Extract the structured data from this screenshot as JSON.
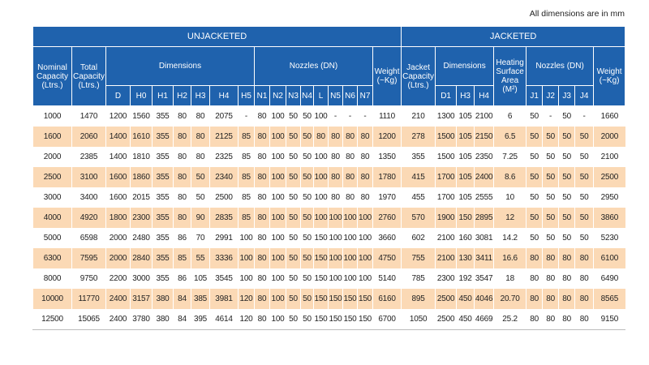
{
  "note": "All dimensions are in mm",
  "table": {
    "groups": [
      "UNJACKETED",
      "JACKETED"
    ],
    "headers": [
      "Nominal Capacity (Ltrs.)",
      "Total Capacity (Ltrs.)",
      "Dimensions",
      "Nozzles (DN)",
      "Weight (~Kg)",
      "Jacket Capacity (Ltrs.)",
      "Dimensions",
      "Heating Surface Area (M²)",
      "Nozzles (DN)",
      "Weight (~Kg)"
    ],
    "subheaders": [
      "D",
      "H0",
      "H1",
      "H2",
      "H3",
      "H4",
      "H5",
      "N1",
      "N2",
      "N3",
      "N4",
      "L",
      "N5",
      "N6",
      "N7",
      "D1",
      "H3",
      "H4",
      "J1",
      "J2",
      "J3",
      "J4"
    ],
    "rows": [
      [
        "1000",
        "1470",
        "1200",
        "1560",
        "355",
        "80",
        "80",
        "2075",
        "-",
        "80",
        "100",
        "50",
        "50",
        "100",
        "-",
        "-",
        "-",
        "1110",
        "210",
        "1300",
        "105",
        "2100",
        "6",
        "50",
        "-",
        "50",
        "-",
        "1660"
      ],
      [
        "1600",
        "2060",
        "1400",
        "1610",
        "355",
        "80",
        "80",
        "2125",
        "85",
        "80",
        "100",
        "50",
        "50",
        "80",
        "80",
        "80",
        "80",
        "1200",
        "278",
        "1500",
        "105",
        "2150",
        "6.5",
        "50",
        "50",
        "50",
        "50",
        "2000"
      ],
      [
        "2000",
        "2385",
        "1400",
        "1810",
        "355",
        "80",
        "80",
        "2325",
        "85",
        "80",
        "100",
        "50",
        "50",
        "100",
        "80",
        "80",
        "80",
        "1350",
        "355",
        "1500",
        "105",
        "2350",
        "7.25",
        "50",
        "50",
        "50",
        "50",
        "2100"
      ],
      [
        "2500",
        "3100",
        "1600",
        "1860",
        "355",
        "80",
        "50",
        "2340",
        "85",
        "80",
        "100",
        "50",
        "50",
        "100",
        "80",
        "80",
        "80",
        "1780",
        "415",
        "1700",
        "105",
        "2400",
        "8.6",
        "50",
        "50",
        "50",
        "50",
        "2500"
      ],
      [
        "3000",
        "3400",
        "1600",
        "2015",
        "355",
        "80",
        "50",
        "2500",
        "85",
        "80",
        "100",
        "50",
        "50",
        "100",
        "80",
        "80",
        "80",
        "1970",
        "455",
        "1700",
        "105",
        "2555",
        "10",
        "50",
        "50",
        "50",
        "50",
        "2950"
      ],
      [
        "4000",
        "4920",
        "1800",
        "2300",
        "355",
        "80",
        "90",
        "2835",
        "85",
        "80",
        "100",
        "50",
        "50",
        "100",
        "100",
        "100",
        "100",
        "2760",
        "570",
        "1900",
        "150",
        "2895",
        "12",
        "50",
        "50",
        "50",
        "50",
        "3860"
      ],
      [
        "5000",
        "6598",
        "2000",
        "2480",
        "355",
        "86",
        "70",
        "2991",
        "100",
        "80",
        "100",
        "50",
        "50",
        "150",
        "100",
        "100",
        "100",
        "3660",
        "602",
        "2100",
        "160",
        "3081",
        "14.2",
        "50",
        "50",
        "50",
        "50",
        "5230"
      ],
      [
        "6300",
        "7595",
        "2000",
        "2840",
        "355",
        "85",
        "55",
        "3336",
        "100",
        "80",
        "100",
        "50",
        "50",
        "150",
        "100",
        "100",
        "100",
        "4750",
        "755",
        "2100",
        "130",
        "3411",
        "16.6",
        "80",
        "80",
        "80",
        "80",
        "6100"
      ],
      [
        "8000",
        "9750",
        "2200",
        "3000",
        "355",
        "86",
        "105",
        "3545",
        "100",
        "80",
        "100",
        "50",
        "50",
        "150",
        "100",
        "100",
        "100",
        "5140",
        "785",
        "2300",
        "192",
        "3547",
        "18",
        "80",
        "80",
        "80",
        "80",
        "6490"
      ],
      [
        "10000",
        "11770",
        "2400",
        "3157",
        "380",
        "84",
        "385",
        "3981",
        "120",
        "80",
        "100",
        "50",
        "50",
        "150",
        "150",
        "150",
        "150",
        "6160",
        "895",
        "2500",
        "450",
        "4046",
        "20.70",
        "80",
        "80",
        "80",
        "80",
        "8565"
      ],
      [
        "12500",
        "15065",
        "2400",
        "3780",
        "380",
        "84",
        "395",
        "4614",
        "120",
        "80",
        "100",
        "50",
        "50",
        "150",
        "150",
        "150",
        "150",
        "6700",
        "1050",
        "2500",
        "450",
        "4669",
        "25.2",
        "80",
        "80",
        "80",
        "80",
        "9150"
      ]
    ]
  }
}
